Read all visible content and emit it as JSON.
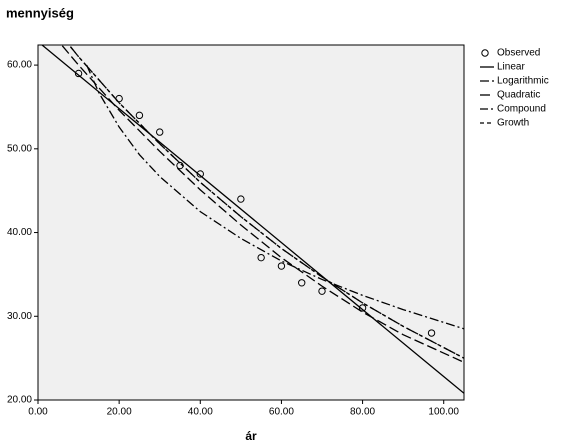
{
  "chart_data": {
    "type": "scatter",
    "title": "mennyiség",
    "x_label": "ár",
    "xlim": [
      0,
      105
    ],
    "ylim": [
      20,
      62.4
    ],
    "xticks": [
      {
        "value": 0,
        "label": "0.00"
      },
      {
        "value": 20,
        "label": "20.00"
      },
      {
        "value": 40,
        "label": "40.00"
      },
      {
        "value": 60,
        "label": "60.00"
      },
      {
        "value": 80,
        "label": "80.00"
      },
      {
        "value": 100,
        "label": "100.00"
      }
    ],
    "yticks": [
      {
        "value": 20,
        "label": "20.00"
      },
      {
        "value": 30,
        "label": "30.00"
      },
      {
        "value": 40,
        "label": "40.00"
      },
      {
        "value": 50,
        "label": "50.00"
      },
      {
        "value": 60,
        "label": "60.00"
      }
    ],
    "legend": "right",
    "series": [
      {
        "name": "Observed",
        "style": "marker",
        "color": "#000000",
        "x": [
          10,
          20,
          25,
          30,
          35,
          40,
          50,
          55,
          60,
          65,
          70,
          80,
          97
        ],
        "values": [
          59,
          56,
          54,
          52,
          48,
          47,
          44,
          37,
          36,
          34,
          33,
          31,
          28
        ]
      },
      {
        "name": "Linear",
        "style": "solid",
        "color": "#000000",
        "x": [
          1,
          105
        ],
        "values": [
          62.4,
          20.8
        ]
      },
      {
        "name": "Logarithmic",
        "style": "dashdot",
        "color": "#000000",
        "x": [
          12,
          15,
          20,
          25,
          30,
          40,
          50,
          60,
          70,
          80,
          90,
          105
        ],
        "values": [
          60.0,
          56.7,
          52.6,
          49.3,
          46.7,
          42.5,
          39.3,
          36.6,
          34.4,
          32.5,
          30.8,
          28.5
        ]
      },
      {
        "name": "Quadratic",
        "style": "longdash",
        "color": "#000000",
        "x": [
          6,
          10,
          20,
          30,
          40,
          50,
          60,
          70,
          80,
          90,
          105
        ],
        "values": [
          62.3,
          60.0,
          54.6,
          49.7,
          45.1,
          40.9,
          37.0,
          33.6,
          30.5,
          27.8,
          24.5
        ]
      },
      {
        "name": "Compound",
        "style": "dashdotdot",
        "color": "#000000",
        "x": [
          8,
          10,
          20,
          30,
          40,
          50,
          60,
          70,
          80,
          90,
          105
        ],
        "values": [
          62.2,
          61.0,
          55.5,
          50.6,
          46.0,
          41.9,
          38.1,
          34.7,
          31.6,
          28.8,
          25.0
        ]
      },
      {
        "name": "Growth",
        "style": "dash",
        "color": "#000000",
        "x": [
          8,
          10,
          20,
          30,
          40,
          50,
          60,
          70,
          80,
          90,
          105
        ],
        "values": [
          62.2,
          61.0,
          55.5,
          50.6,
          46.0,
          41.9,
          38.1,
          34.7,
          31.6,
          28.8,
          25.0
        ]
      }
    ]
  }
}
